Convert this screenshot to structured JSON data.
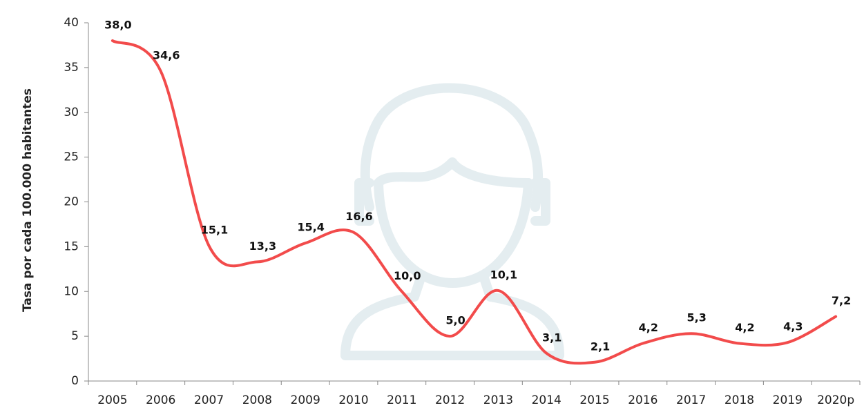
{
  "chart_data": {
    "type": "line",
    "y_label": "Tasa por cada 100.000 habitantes",
    "categories": [
      "2005",
      "2006",
      "2007",
      "2008",
      "2009",
      "2010",
      "2011",
      "2012",
      "2013",
      "2014",
      "2015",
      "2016",
      "2017",
      "2018",
      "2019",
      "2020p"
    ],
    "values": [
      38.0,
      34.6,
      15.1,
      13.3,
      15.4,
      16.6,
      10.0,
      5.0,
      10.1,
      3.1,
      2.1,
      4.2,
      5.3,
      4.2,
      4.3,
      7.2
    ],
    "value_labels": [
      "38,0",
      "34,6",
      "15,1",
      "13,3",
      "15,4",
      "16,6",
      "10,0",
      "5,0",
      "10,1",
      "3,1",
      "2,1",
      "4,2",
      "5,3",
      "4,2",
      "4,3",
      "7,2"
    ],
    "color": "#f24b4b",
    "ylim": [
      0,
      40
    ],
    "yticks": [
      0,
      5,
      10,
      15,
      20,
      25,
      30,
      35,
      40
    ]
  }
}
